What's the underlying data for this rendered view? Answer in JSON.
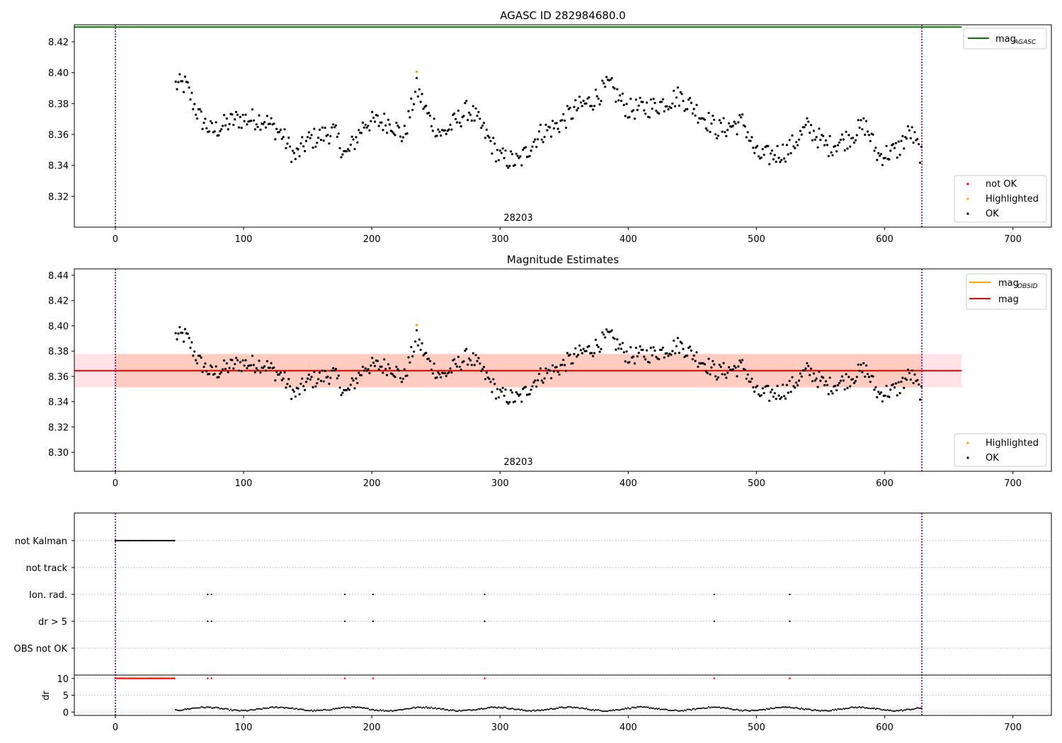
{
  "colors": {
    "ok": "#000000",
    "not_ok": "#ff0000",
    "highlighted": "#ffa500",
    "mag_agasc": "#008000",
    "mag_obsid": "#ffa500",
    "mag": "#ff0000",
    "band_outer": "#ffc0cb",
    "band_inner": "#ffa07a",
    "obs_boundary": "#800080",
    "grid": "#b0b0b0"
  },
  "chart_data": [
    {
      "type": "scatter",
      "title": "AGASC ID 282984680.0",
      "obsid_label": "28203",
      "xlim": [
        -32,
        730
      ],
      "ylim": [
        8.3,
        8.431
      ],
      "xticks": [
        0,
        100,
        200,
        300,
        400,
        500,
        600,
        700
      ],
      "yticks": [
        8.32,
        8.34,
        8.36,
        8.38,
        8.4,
        8.42
      ],
      "ytick_labels": [
        "8.32",
        "8.34",
        "8.36",
        "8.38",
        "8.40",
        "8.42"
      ],
      "vlines": [
        0,
        629
      ],
      "mag_agasc": 8.4295,
      "mag_agasc_span": [
        -32,
        660
      ],
      "highlighted": [
        [
          235,
          8.4006
        ]
      ],
      "legend_lines": [
        {
          "label": "mag",
          "sub": "AGASC",
          "color": "#008000"
        }
      ],
      "legend_points": [
        {
          "label": "not OK",
          "color": "#ff0000"
        },
        {
          "label": "Highlighted",
          "color": "#ffa500"
        },
        {
          "label": "OK",
          "color": "#000000"
        }
      ]
    },
    {
      "type": "scatter",
      "title": "Magnitude Estimates",
      "obsid_label": "28203",
      "xlim": [
        -32,
        730
      ],
      "ylim": [
        8.285,
        8.445
      ],
      "xticks": [
        0,
        100,
        200,
        300,
        400,
        500,
        600,
        700
      ],
      "yticks": [
        8.3,
        8.32,
        8.34,
        8.36,
        8.38,
        8.4,
        8.42,
        8.44
      ],
      "ytick_labels": [
        "8.30",
        "8.32",
        "8.34",
        "8.36",
        "8.38",
        "8.40",
        "8.42",
        "8.44"
      ],
      "vlines": [
        0,
        629
      ],
      "mag": 8.3645,
      "mag_span": [
        -32,
        660
      ],
      "mag_std": 0.0132,
      "mag_obsid_span": [
        0,
        629
      ],
      "highlighted": [
        [
          235,
          8.4006
        ]
      ],
      "legend_lines": [
        {
          "label": "mag",
          "sub": "OBSID",
          "color": "#ffa500"
        },
        {
          "label": "mag",
          "sub": "",
          "color": "#ff0000"
        }
      ],
      "legend_points": [
        {
          "label": "Highlighted",
          "color": "#ffa500"
        },
        {
          "label": "OK",
          "color": "#000000"
        }
      ]
    },
    {
      "type": "scatter",
      "title": "",
      "xlim": [
        -32,
        730
      ],
      "xticks": [
        0,
        100,
        200,
        300,
        400,
        500,
        600,
        700
      ],
      "vlines": [
        0,
        629
      ],
      "flag_categories": [
        "not Kalman",
        "not track",
        "Ion. rad.",
        "dr > 5",
        "OBS not OK"
      ],
      "not_kalman_range": [
        0,
        47
      ],
      "ion_rad_times": [
        72,
        75,
        179,
        201,
        288,
        467,
        526
      ],
      "dr_gt5_times": [
        72,
        75,
        179,
        201,
        288,
        467,
        526
      ],
      "dr_ylabel": "dr",
      "dr_yticks": [
        0,
        5,
        10
      ],
      "dr_ylim": [
        -1,
        11
      ],
      "dr_clip_value": 10,
      "dr_clipped_times": [
        72,
        75,
        179,
        201,
        288,
        467,
        526
      ]
    }
  ]
}
